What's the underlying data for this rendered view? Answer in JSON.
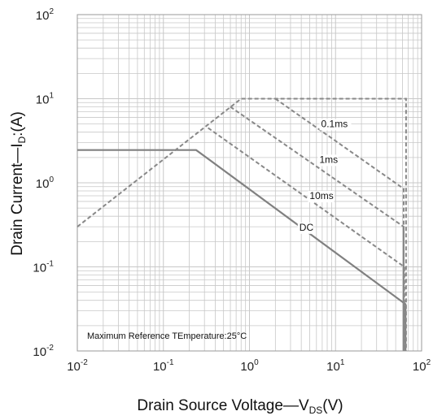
{
  "chart_data": {
    "type": "line",
    "x_scale": "log",
    "y_scale": "log",
    "xlim": [
      0.01,
      100
    ],
    "ylim": [
      0.01,
      100
    ],
    "x_ticks": [
      {
        "base": "10",
        "exp": "-2"
      },
      {
        "base": "10",
        "exp": "-1"
      },
      {
        "base": "10",
        "exp": "0"
      },
      {
        "base": "10",
        "exp": "1"
      },
      {
        "base": "10",
        "exp": "2"
      }
    ],
    "y_ticks": [
      {
        "base": "10",
        "exp": "-2"
      },
      {
        "base": "10",
        "exp": "-1"
      },
      {
        "base": "10",
        "exp": "0"
      },
      {
        "base": "10",
        "exp": "1"
      },
      {
        "base": "10",
        "exp": "2"
      }
    ],
    "xlabel": {
      "main": "Drain Source Voltage",
      "dash": "—",
      "symbol": "V",
      "subscript": "DS",
      "unit": "(V)"
    },
    "ylabel": {
      "main": "Drain Current",
      "dash": "—",
      "symbol": "I",
      "subscript": "D",
      "unit": ":(A)"
    },
    "annotation": "Maximum Reference TEmperature:25°C",
    "grid": true,
    "colors": {
      "solid": "#808080",
      "dashed": "#888888",
      "grid": "#c8c8c8",
      "frame": "#999999"
    },
    "series": [
      {
        "name": "DC",
        "style": "solid",
        "points": [
          [
            0.01,
            2.45
          ],
          [
            0.24,
            2.45
          ],
          [
            65,
            0.036
          ],
          [
            65,
            0.01
          ]
        ],
        "label_at": [
          3.8,
          0.27
        ]
      },
      {
        "name": "10ms",
        "style": "dashed",
        "points": [
          [
            0.33,
            4.5
          ],
          [
            63,
            0.1
          ],
          [
            63,
            0.01
          ]
        ],
        "label_at": [
          5.0,
          0.64
        ]
      },
      {
        "name": "1ms",
        "style": "dashed",
        "points": [
          [
            0.6,
            8.0
          ],
          [
            62,
            0.3
          ],
          [
            62,
            0.01
          ]
        ],
        "label_at": [
          6.5,
          1.73
        ]
      },
      {
        "name": "0.1ms",
        "style": "dashed",
        "points": [
          [
            2.0,
            10
          ],
          [
            62,
            0.85
          ],
          [
            62,
            0.01
          ]
        ],
        "label_at": [
          6.8,
          4.6
        ]
      },
      {
        "name": "",
        "style": "dashed",
        "points": [
          [
            0.01,
            0.3
          ],
          [
            0.8,
            10
          ],
          [
            66,
            10
          ],
          [
            66,
            0.01
          ]
        ],
        "label_at": null
      }
    ]
  }
}
